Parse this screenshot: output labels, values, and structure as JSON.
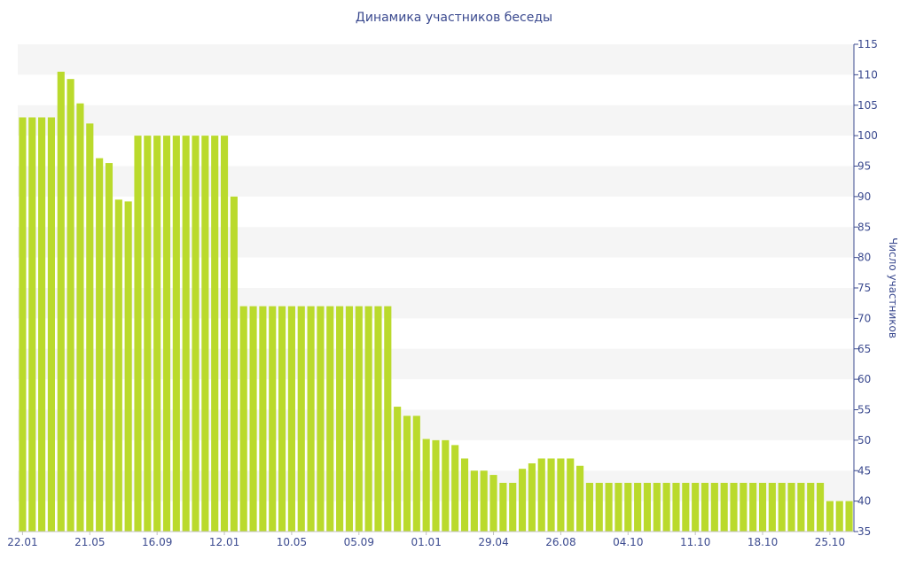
{
  "chart_data": {
    "type": "bar",
    "title": "Динамика участников беседы",
    "ylabel": "Число участников",
    "xlabel": "",
    "ylim": [
      35,
      115
    ],
    "yticks": [
      35,
      40,
      45,
      50,
      55,
      60,
      65,
      70,
      75,
      80,
      85,
      90,
      95,
      100,
      105,
      110,
      115
    ],
    "y_axis_side": "right",
    "grid": "alternating horizontal bands",
    "bar_color": "#bada2c",
    "band_color": "#f5f5f5",
    "text_color": "#3b4a8f",
    "x_tick_labels": [
      {
        "label": "22.01",
        "index": 0
      },
      {
        "label": "21.05",
        "index": 7
      },
      {
        "label": "16.09",
        "index": 14
      },
      {
        "label": "12.01",
        "index": 21
      },
      {
        "label": "10.05",
        "index": 28
      },
      {
        "label": "05.09",
        "index": 35
      },
      {
        "label": "01.01",
        "index": 42
      },
      {
        "label": "29.04",
        "index": 49
      },
      {
        "label": "26.08",
        "index": 56
      },
      {
        "label": "04.10",
        "index": 63
      },
      {
        "label": "11.10",
        "index": 70
      },
      {
        "label": "18.10",
        "index": 77
      },
      {
        "label": "25.10",
        "index": 84
      }
    ],
    "values": [
      103,
      103,
      103,
      103,
      110.5,
      109.3,
      105.3,
      102,
      96.3,
      95.5,
      89.5,
      89.2,
      100,
      100,
      100,
      100,
      100,
      100,
      100,
      100,
      100,
      100,
      90,
      72,
      72,
      72,
      72,
      72,
      72,
      72,
      72,
      72,
      72,
      72,
      72,
      72,
      72,
      72,
      72,
      55.5,
      54,
      54,
      50.2,
      50,
      50,
      49.2,
      47,
      45,
      45,
      44.3,
      43,
      43,
      45.3,
      46.2,
      47,
      47,
      47,
      47,
      45.8,
      43,
      43,
      43,
      43,
      43,
      43,
      43,
      43,
      43,
      43,
      43,
      43,
      43,
      43,
      43,
      43,
      43,
      43,
      43,
      43,
      43,
      43,
      43,
      43,
      43,
      40,
      40,
      40
    ]
  }
}
